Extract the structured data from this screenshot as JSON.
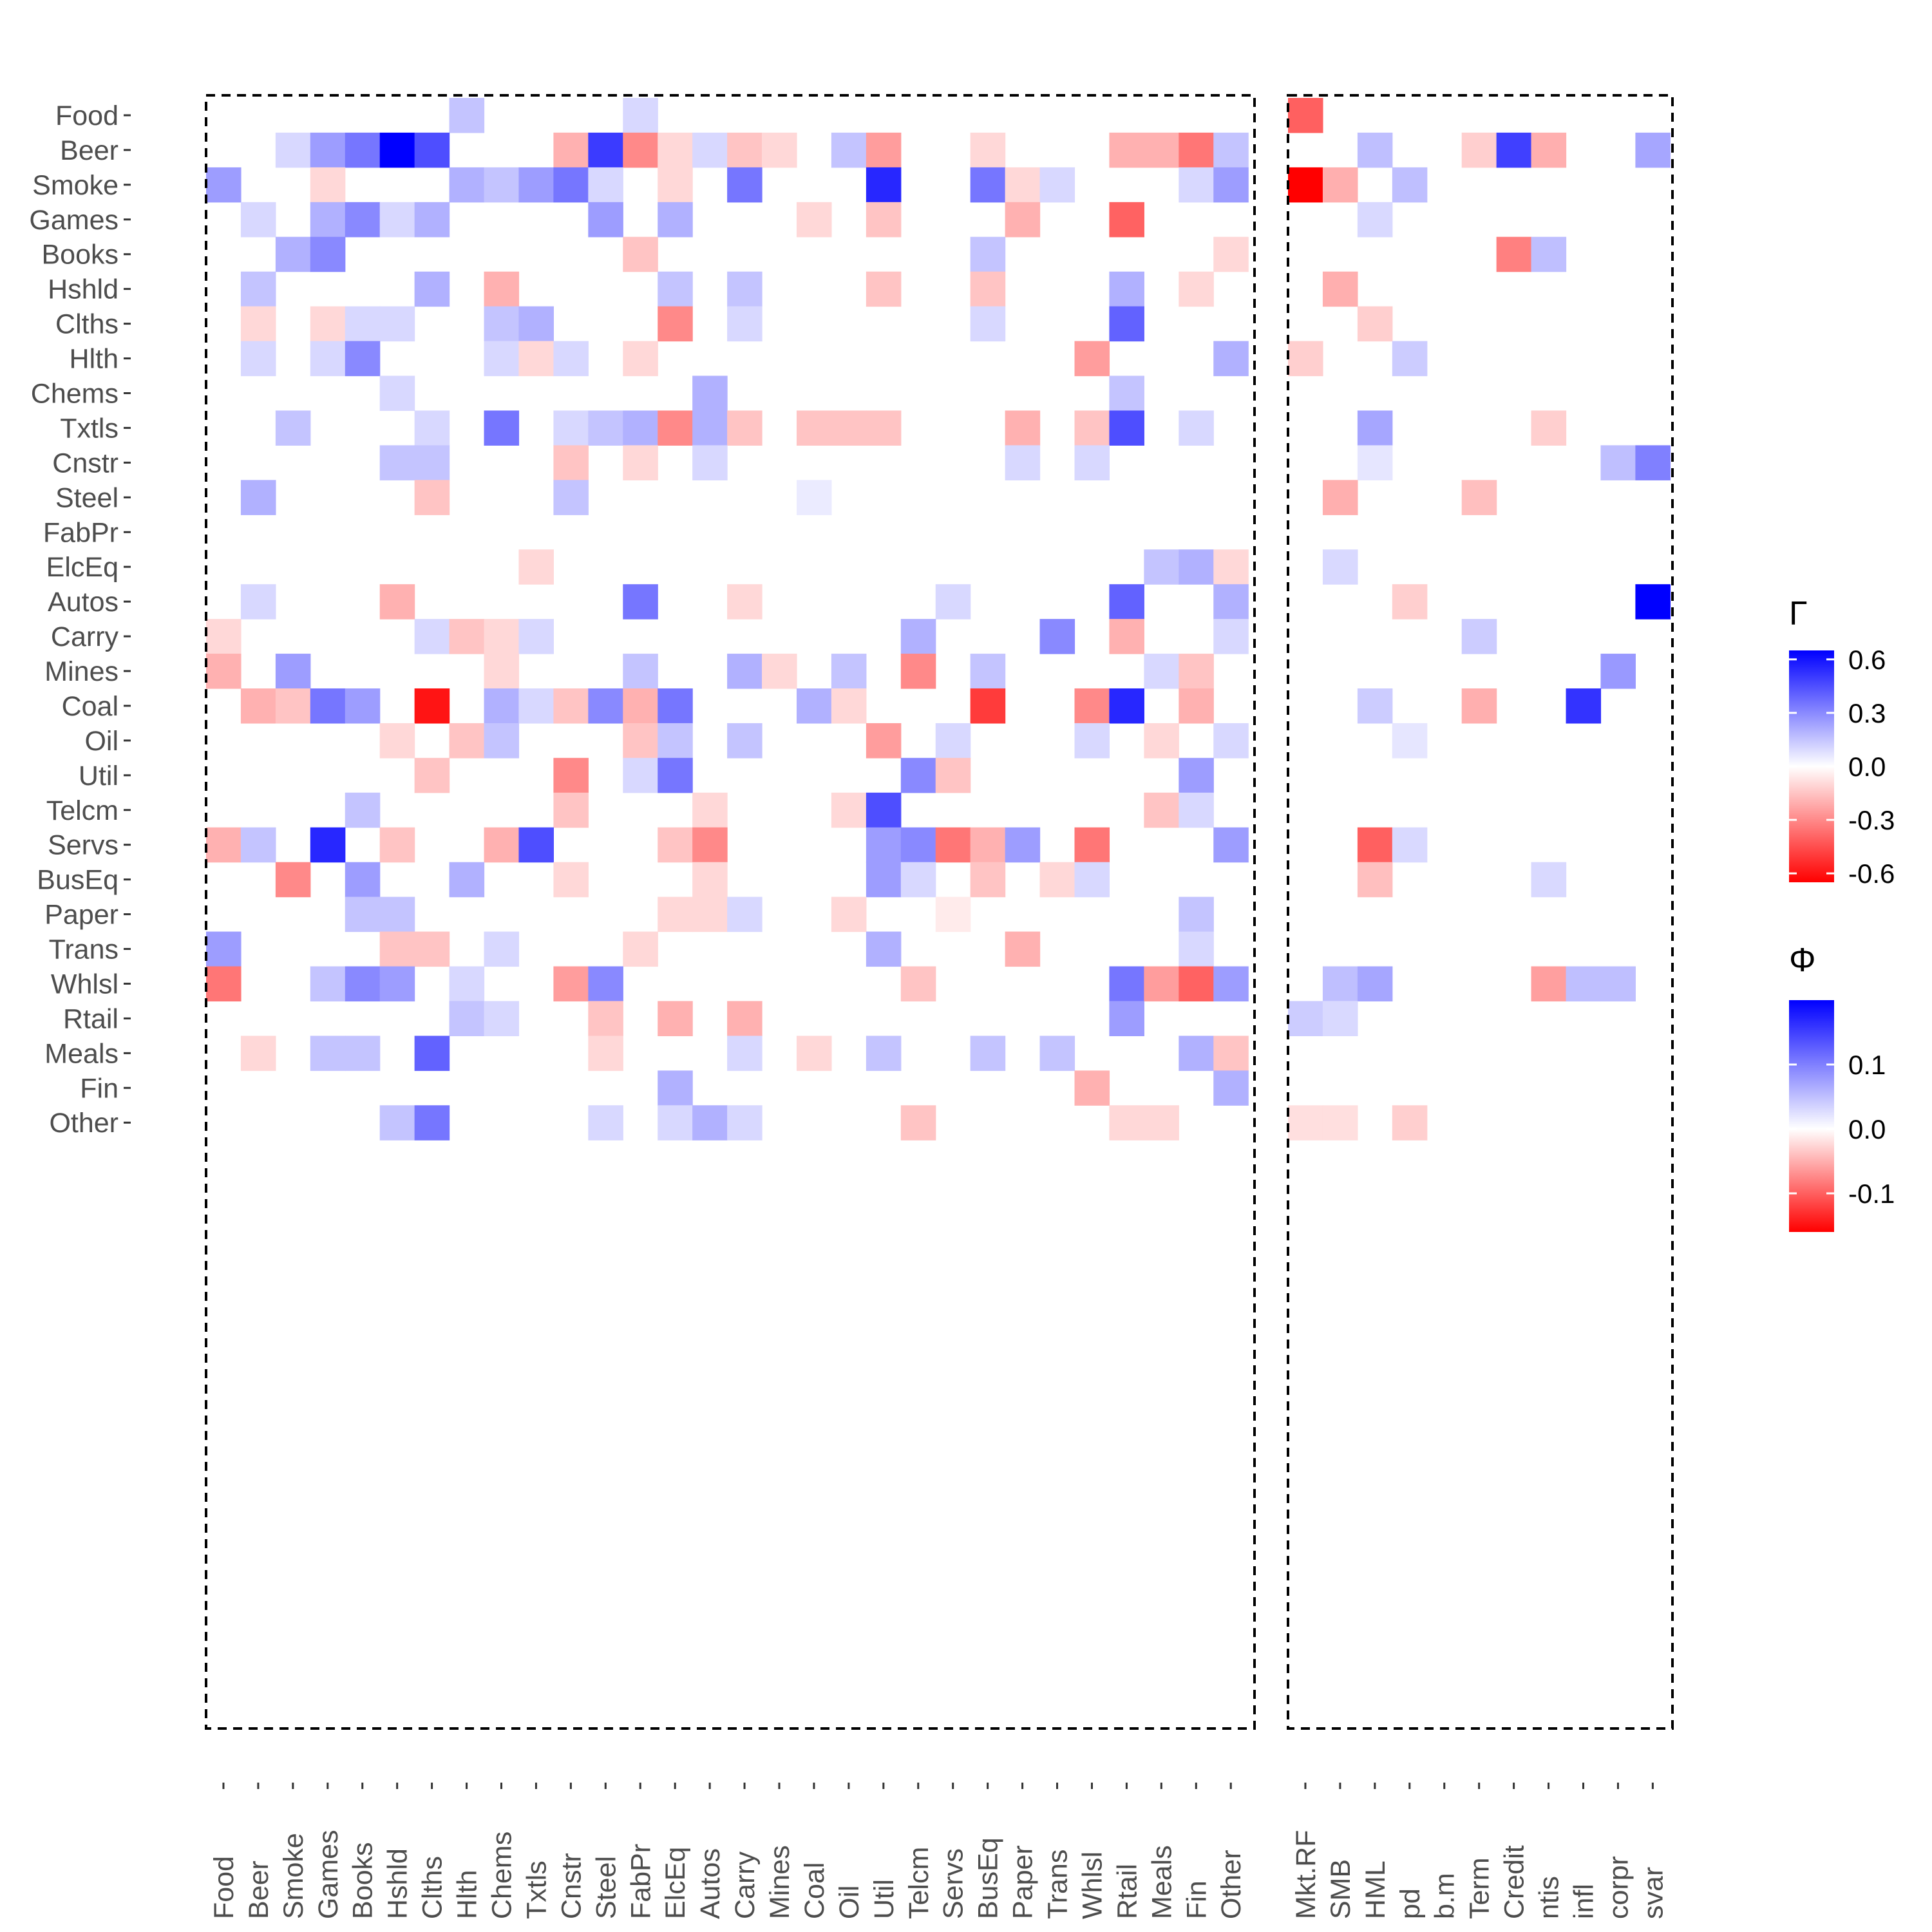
{
  "chart_data": {
    "type": "heatmap",
    "title": "",
    "rows": [
      "Food",
      "Beer",
      "Smoke",
      "Games",
      "Books",
      "Hshld",
      "Clths",
      "Hlth",
      "Chems",
      "Txtls",
      "Cnstr",
      "Steel",
      "FabPr",
      "ElcEq",
      "Autos",
      "Carry",
      "Mines",
      "Coal",
      "Oil",
      "Util",
      "Telcm",
      "Servs",
      "BusEq",
      "Paper",
      "Trans",
      "Whlsl",
      "Rtail",
      "Meals",
      "Fin",
      "Other"
    ],
    "gamma_columns": [
      "Food",
      "Beer",
      "Smoke",
      "Games",
      "Books",
      "Hshld",
      "Clths",
      "Hlth",
      "Chems",
      "Txtls",
      "Cnstr",
      "Steel",
      "FabPr",
      "ElcEq",
      "Autos",
      "Carry",
      "Mines",
      "Coal",
      "Oil",
      "Util",
      "Telcm",
      "Servs",
      "BusEq",
      "Paper",
      "Trans",
      "Whlsl",
      "Rtail",
      "Meals",
      "Fin",
      "Other"
    ],
    "phi_columns": [
      "Mkt.RF",
      "SMB",
      "HML",
      "pd",
      "b.m",
      "Term",
      "Credit",
      "ntis",
      "infl",
      "corpr",
      "svar"
    ],
    "gamma_matrix": [
      [
        0,
        0,
        0,
        0,
        0,
        0,
        0,
        0.15,
        0,
        0,
        0,
        0,
        0.1,
        0,
        0,
        0,
        0,
        0,
        0,
        0,
        0,
        0,
        0,
        0,
        0,
        0,
        0,
        0,
        0,
        0
      ],
      [
        0,
        0,
        0.1,
        0.25,
        0.35,
        0.65,
        0.45,
        0,
        0,
        0,
        -0.2,
        0.5,
        -0.3,
        -0.1,
        0.1,
        -0.15,
        -0.1,
        0,
        0.15,
        -0.25,
        0,
        0,
        -0.1,
        0,
        0,
        0,
        -0.2,
        -0.2,
        -0.35,
        0.15
      ],
      [
        0.25,
        0,
        0,
        -0.1,
        0,
        0,
        0,
        0.2,
        0.15,
        0.25,
        0.35,
        0.1,
        0,
        -0.1,
        0,
        0.35,
        0,
        0,
        0,
        0.55,
        0,
        0,
        0.35,
        -0.1,
        0.1,
        0,
        0,
        0,
        0.1,
        0.25
      ],
      [
        0,
        0.1,
        0,
        0.2,
        0.3,
        0.1,
        0.2,
        0,
        0,
        0,
        0,
        0.25,
        0,
        0.2,
        0,
        0,
        0,
        -0.1,
        0,
        -0.15,
        0,
        0,
        0,
        -0.2,
        0,
        0,
        -0.4,
        0,
        0,
        0
      ],
      [
        0,
        0,
        0.2,
        0.3,
        0,
        0,
        0,
        0,
        0,
        0,
        0,
        0,
        -0.15,
        0,
        0,
        0,
        0,
        0,
        0,
        0,
        0,
        0,
        0.15,
        0,
        0,
        0,
        0,
        0,
        0,
        -0.1
      ],
      [
        0,
        0.15,
        0,
        0,
        0,
        0,
        0.2,
        0,
        -0.2,
        0,
        0,
        0,
        0,
        0.15,
        0,
        0.15,
        0,
        0,
        0,
        -0.15,
        0,
        0,
        -0.15,
        0,
        0,
        0,
        0.2,
        0,
        -0.1,
        0
      ],
      [
        0,
        -0.1,
        0,
        -0.1,
        0.1,
        0.1,
        0,
        0,
        0.15,
        0.2,
        0,
        0,
        0,
        -0.3,
        0,
        0.1,
        0,
        0,
        0,
        0,
        0,
        0,
        0.1,
        0,
        0,
        0,
        0.4,
        0,
        0,
        0
      ],
      [
        0,
        0.1,
        0,
        0.1,
        0.3,
        0,
        0,
        0,
        0.1,
        -0.1,
        0.1,
        0,
        -0.1,
        0,
        0,
        0,
        0,
        0,
        0,
        0,
        0,
        0,
        0,
        0,
        0,
        -0.25,
        0,
        0,
        0,
        0.2
      ],
      [
        0,
        0,
        0,
        0,
        0,
        0.1,
        0,
        0,
        0,
        0,
        0,
        0,
        0,
        0,
        0.2,
        0,
        0,
        0,
        0,
        0,
        0,
        0,
        0,
        0,
        0,
        0,
        0.15,
        0,
        0,
        0
      ],
      [
        0,
        0,
        0.15,
        0,
        0,
        0,
        0.1,
        0,
        0.35,
        0,
        0.1,
        0.15,
        0.2,
        -0.3,
        0.2,
        -0.15,
        0,
        -0.15,
        -0.15,
        -0.15,
        0,
        0,
        0,
        -0.2,
        0,
        -0.15,
        0.45,
        0,
        0.1,
        0
      ],
      [
        0,
        0,
        0,
        0,
        0,
        0.15,
        0.15,
        0,
        0,
        0,
        -0.15,
        0,
        -0.1,
        0,
        0.1,
        0,
        0,
        0,
        0,
        0,
        0,
        0,
        0,
        0.1,
        0,
        0.1,
        0,
        0,
        0,
        0
      ],
      [
        0,
        0.2,
        0,
        0,
        0,
        0,
        -0.15,
        0,
        0,
        0,
        0.15,
        0,
        0,
        0,
        0,
        0,
        0,
        0.05,
        0,
        0,
        0,
        0,
        0,
        0,
        0,
        0,
        0,
        0,
        0,
        0
      ],
      [
        0,
        0,
        0,
        0,
        0,
        0,
        0,
        0,
        0,
        0,
        0,
        0,
        0,
        0,
        0,
        0,
        0,
        0,
        0,
        0,
        0,
        0,
        0,
        0,
        0,
        0,
        0,
        0,
        0,
        0
      ],
      [
        0,
        0,
        0,
        0,
        0,
        0,
        0,
        0,
        0,
        -0.1,
        0,
        0,
        0,
        0,
        0,
        0,
        0,
        0,
        0,
        0,
        0,
        0,
        0,
        0,
        0,
        0,
        0,
        0.15,
        0.2,
        -0.1
      ],
      [
        0,
        0.1,
        0,
        0,
        0,
        -0.2,
        0,
        0,
        0,
        0,
        0,
        0,
        0.35,
        0,
        0,
        -0.1,
        0,
        0,
        0,
        0,
        0,
        0.1,
        0,
        0,
        0,
        0,
        0.4,
        0,
        0,
        0.2
      ],
      [
        -0.1,
        0,
        0,
        0,
        0,
        0,
        0.1,
        -0.15,
        -0.1,
        0.1,
        0,
        0,
        0,
        0,
        0,
        0,
        0,
        0,
        0,
        0,
        0.2,
        0,
        0,
        0,
        0.3,
        0,
        -0.2,
        0,
        0,
        0.1
      ],
      [
        -0.2,
        0,
        0.25,
        0,
        0,
        0,
        0,
        0,
        -0.1,
        0,
        0,
        0,
        0.15,
        0,
        0,
        0.2,
        -0.1,
        0,
        0.15,
        0,
        -0.3,
        0,
        0.15,
        0,
        0,
        0,
        0,
        0.1,
        -0.15,
        0
      ],
      [
        0,
        -0.2,
        -0.15,
        0.35,
        0.25,
        0,
        -0.6,
        0,
        0.2,
        0.1,
        -0.15,
        0.3,
        -0.2,
        0.35,
        0,
        0,
        0,
        0.2,
        -0.1,
        0,
        0,
        0,
        -0.5,
        0,
        0,
        -0.3,
        0.55,
        0,
        -0.2,
        0
      ],
      [
        0,
        0,
        0,
        0,
        0,
        -0.1,
        0,
        -0.15,
        0.15,
        0,
        0,
        0,
        -0.15,
        0.15,
        0,
        0.15,
        0,
        0,
        0,
        -0.25,
        0,
        0.1,
        0,
        0,
        0,
        0.1,
        0,
        -0.1,
        0,
        0.1
      ],
      [
        0,
        0,
        0,
        0,
        0,
        0,
        -0.15,
        0,
        0,
        0,
        -0.3,
        0,
        0.1,
        0.35,
        0,
        0,
        0,
        0,
        0,
        0,
        0.3,
        -0.15,
        0,
        0,
        0,
        0,
        0,
        0,
        0.25,
        0
      ],
      [
        0,
        0,
        0,
        0,
        0.15,
        0,
        0,
        0,
        0,
        0,
        -0.15,
        0,
        0,
        0,
        -0.1,
        0,
        0,
        0,
        -0.1,
        0.45,
        0,
        0,
        0,
        0,
        0,
        0,
        0,
        -0.15,
        0.1,
        0
      ],
      [
        -0.2,
        0.15,
        0,
        0.55,
        0,
        -0.15,
        0,
        0,
        -0.2,
        0.45,
        0,
        0,
        0,
        -0.15,
        -0.3,
        0,
        0,
        0,
        0,
        0.25,
        0.3,
        -0.35,
        -0.2,
        0.25,
        0,
        -0.35,
        0,
        0,
        0,
        0.25
      ],
      [
        0,
        0,
        -0.3,
        0,
        0.25,
        0,
        0,
        0.2,
        0,
        0,
        -0.1,
        0,
        0,
        0,
        -0.1,
        0,
        0,
        0,
        0,
        0.25,
        0.1,
        0,
        -0.15,
        0,
        -0.1,
        0.1,
        0,
        0,
        0,
        0
      ],
      [
        0,
        0,
        0,
        0,
        0.15,
        0.15,
        0,
        0,
        0,
        0,
        0,
        0,
        0,
        -0.1,
        -0.1,
        0.1,
        0,
        0,
        -0.1,
        0,
        0,
        -0.05,
        0,
        0,
        0,
        0,
        0,
        0,
        0.15,
        0
      ],
      [
        0.25,
        0,
        0,
        0,
        0,
        -0.15,
        -0.15,
        0,
        0.1,
        0,
        0,
        0,
        -0.1,
        0,
        0,
        0,
        0,
        0,
        0,
        0.2,
        0,
        0,
        0,
        -0.2,
        0,
        0,
        0,
        0,
        0.1,
        0
      ],
      [
        -0.35,
        0,
        0,
        0.15,
        0.3,
        0.25,
        0,
        0.1,
        0,
        0,
        -0.25,
        0.3,
        0,
        0,
        0,
        0,
        0,
        0,
        0,
        0,
        -0.15,
        0,
        0,
        0,
        0,
        0,
        0.35,
        -0.25,
        -0.4,
        0.25
      ],
      [
        0,
        0,
        0,
        0,
        0,
        0,
        0,
        0.15,
        0.1,
        0,
        0,
        -0.15,
        0,
        -0.2,
        0,
        -0.2,
        0,
        0,
        0,
        0,
        0,
        0,
        0,
        0,
        0,
        0,
        0.25,
        0,
        0,
        0
      ],
      [
        0,
        -0.1,
        0,
        0.15,
        0.15,
        0,
        0.4,
        0,
        0,
        0,
        0,
        -0.1,
        0,
        0,
        0,
        0.1,
        0,
        -0.1,
        0,
        0.15,
        0,
        0,
        0.15,
        0,
        0.15,
        0,
        0,
        0,
        0.2,
        -0.15
      ],
      [
        0,
        0,
        0,
        0,
        0,
        0,
        0,
        0,
        0,
        0,
        0,
        0,
        0,
        0.2,
        0,
        0,
        0,
        0,
        0,
        0,
        0,
        0,
        0,
        0,
        0,
        -0.2,
        0,
        0,
        0,
        0.2
      ],
      [
        0,
        0,
        0,
        0,
        0,
        0.15,
        0.35,
        0,
        0,
        0,
        0,
        0.1,
        0,
        0.1,
        0.2,
        0.1,
        0,
        0,
        0,
        0,
        -0.15,
        0,
        0,
        0,
        0,
        0,
        -0.1,
        -0.1,
        0,
        0
      ]
    ],
    "phi_matrix": [
      [
        -0.1,
        0,
        0,
        0,
        0,
        0,
        0,
        0,
        0,
        0,
        0
      ],
      [
        0,
        0,
        0.05,
        0,
        0,
        -0.03,
        0.15,
        -0.05,
        0,
        0,
        0.07
      ],
      [
        -0.2,
        -0.05,
        0,
        0.05,
        0,
        0,
        0,
        0,
        0,
        0,
        0
      ],
      [
        0,
        0,
        0.03,
        0,
        0,
        0,
        0,
        0,
        0,
        0,
        0
      ],
      [
        0,
        0,
        0,
        0,
        0,
        0,
        -0.08,
        0.05,
        0,
        0,
        0
      ],
      [
        0,
        -0.05,
        0,
        0,
        0,
        0,
        0,
        0,
        0,
        0,
        0
      ],
      [
        0,
        0,
        -0.03,
        0,
        0,
        0,
        0,
        0,
        0,
        0,
        0
      ],
      [
        -0.03,
        0,
        0,
        0.04,
        0,
        0,
        0,
        0,
        0,
        0,
        0
      ],
      [
        0,
        0,
        0,
        0,
        0,
        0,
        0,
        0,
        0,
        0,
        0
      ],
      [
        0,
        0,
        0.07,
        0,
        0,
        0,
        0,
        -0.03,
        0,
        0,
        0
      ],
      [
        0,
        0,
        0.02,
        0,
        0,
        0,
        0,
        0,
        0,
        0.05,
        0.1
      ],
      [
        0,
        -0.05,
        0,
        0,
        0,
        -0.04,
        0,
        0,
        0,
        0,
        0
      ],
      [
        0,
        0,
        0,
        0,
        0,
        0,
        0,
        0,
        0,
        0,
        0
      ],
      [
        0,
        0.03,
        0,
        0,
        0,
        0,
        0,
        0,
        0,
        0,
        0
      ],
      [
        0,
        0,
        0,
        -0.03,
        0,
        0,
        0,
        0,
        0,
        0,
        0.2
      ],
      [
        0,
        0,
        0,
        0,
        0,
        0.04,
        0,
        0,
        0,
        0,
        0
      ],
      [
        0,
        0,
        0,
        0,
        0,
        0,
        0,
        0,
        0,
        0.08,
        0
      ],
      [
        0,
        0,
        0.04,
        0,
        0,
        -0.05,
        0,
        0,
        0.16,
        0,
        0
      ],
      [
        0,
        0,
        0,
        0.02,
        0,
        0,
        0,
        0,
        0,
        0,
        0
      ],
      [
        0,
        0,
        0,
        0,
        0,
        0,
        0,
        0,
        0,
        0,
        0
      ],
      [
        0,
        0,
        0,
        0,
        0,
        0,
        0,
        0,
        0,
        0,
        0
      ],
      [
        0,
        0,
        -0.1,
        0.03,
        0,
        0,
        0,
        0,
        0,
        0,
        0
      ],
      [
        0,
        0,
        -0.04,
        0,
        0,
        0,
        0,
        0.03,
        0,
        0,
        0
      ],
      [
        0,
        0,
        0,
        0,
        0,
        0,
        0,
        0,
        0,
        0,
        0
      ],
      [
        0,
        0,
        0,
        0,
        0,
        0,
        0,
        0,
        0,
        0,
        0
      ],
      [
        0,
        0.05,
        0.07,
        0,
        0,
        0,
        0,
        -0.06,
        0.05,
        0.05,
        0
      ],
      [
        0.04,
        0.03,
        0,
        0,
        0,
        0,
        0,
        0,
        0,
        0,
        0
      ],
      [
        0,
        0,
        0,
        0,
        0,
        0,
        0,
        0,
        0,
        0,
        0
      ],
      [
        0,
        0,
        0,
        0,
        0,
        0,
        0,
        0,
        0,
        0,
        0
      ],
      [
        -0.02,
        -0.02,
        0,
        -0.03,
        0,
        0,
        0,
        0,
        0,
        0,
        0
      ]
    ],
    "legends": [
      {
        "title": "Γ",
        "ticks": [
          0.6,
          0.3,
          0.0,
          -0.3,
          -0.6
        ],
        "tick_labels": [
          "0.6",
          "0.3",
          "0.0",
          "-0.3",
          "-0.6"
        ],
        "range": [
          -0.65,
          0.65
        ],
        "low_color": "#FF0000",
        "mid_color": "#FFFFFF",
        "high_color": "#0000FF"
      },
      {
        "title": "Φ",
        "ticks": [
          0.1,
          0.0,
          -0.1
        ],
        "tick_labels": [
          "0.1",
          "0.0",
          "-0.1"
        ],
        "range": [
          -0.16,
          0.2
        ],
        "low_color": "#FF0000",
        "mid_color": "#FFFFFF",
        "high_color": "#0000FF"
      }
    ],
    "xlabel": "",
    "ylabel": "",
    "grid": false
  }
}
